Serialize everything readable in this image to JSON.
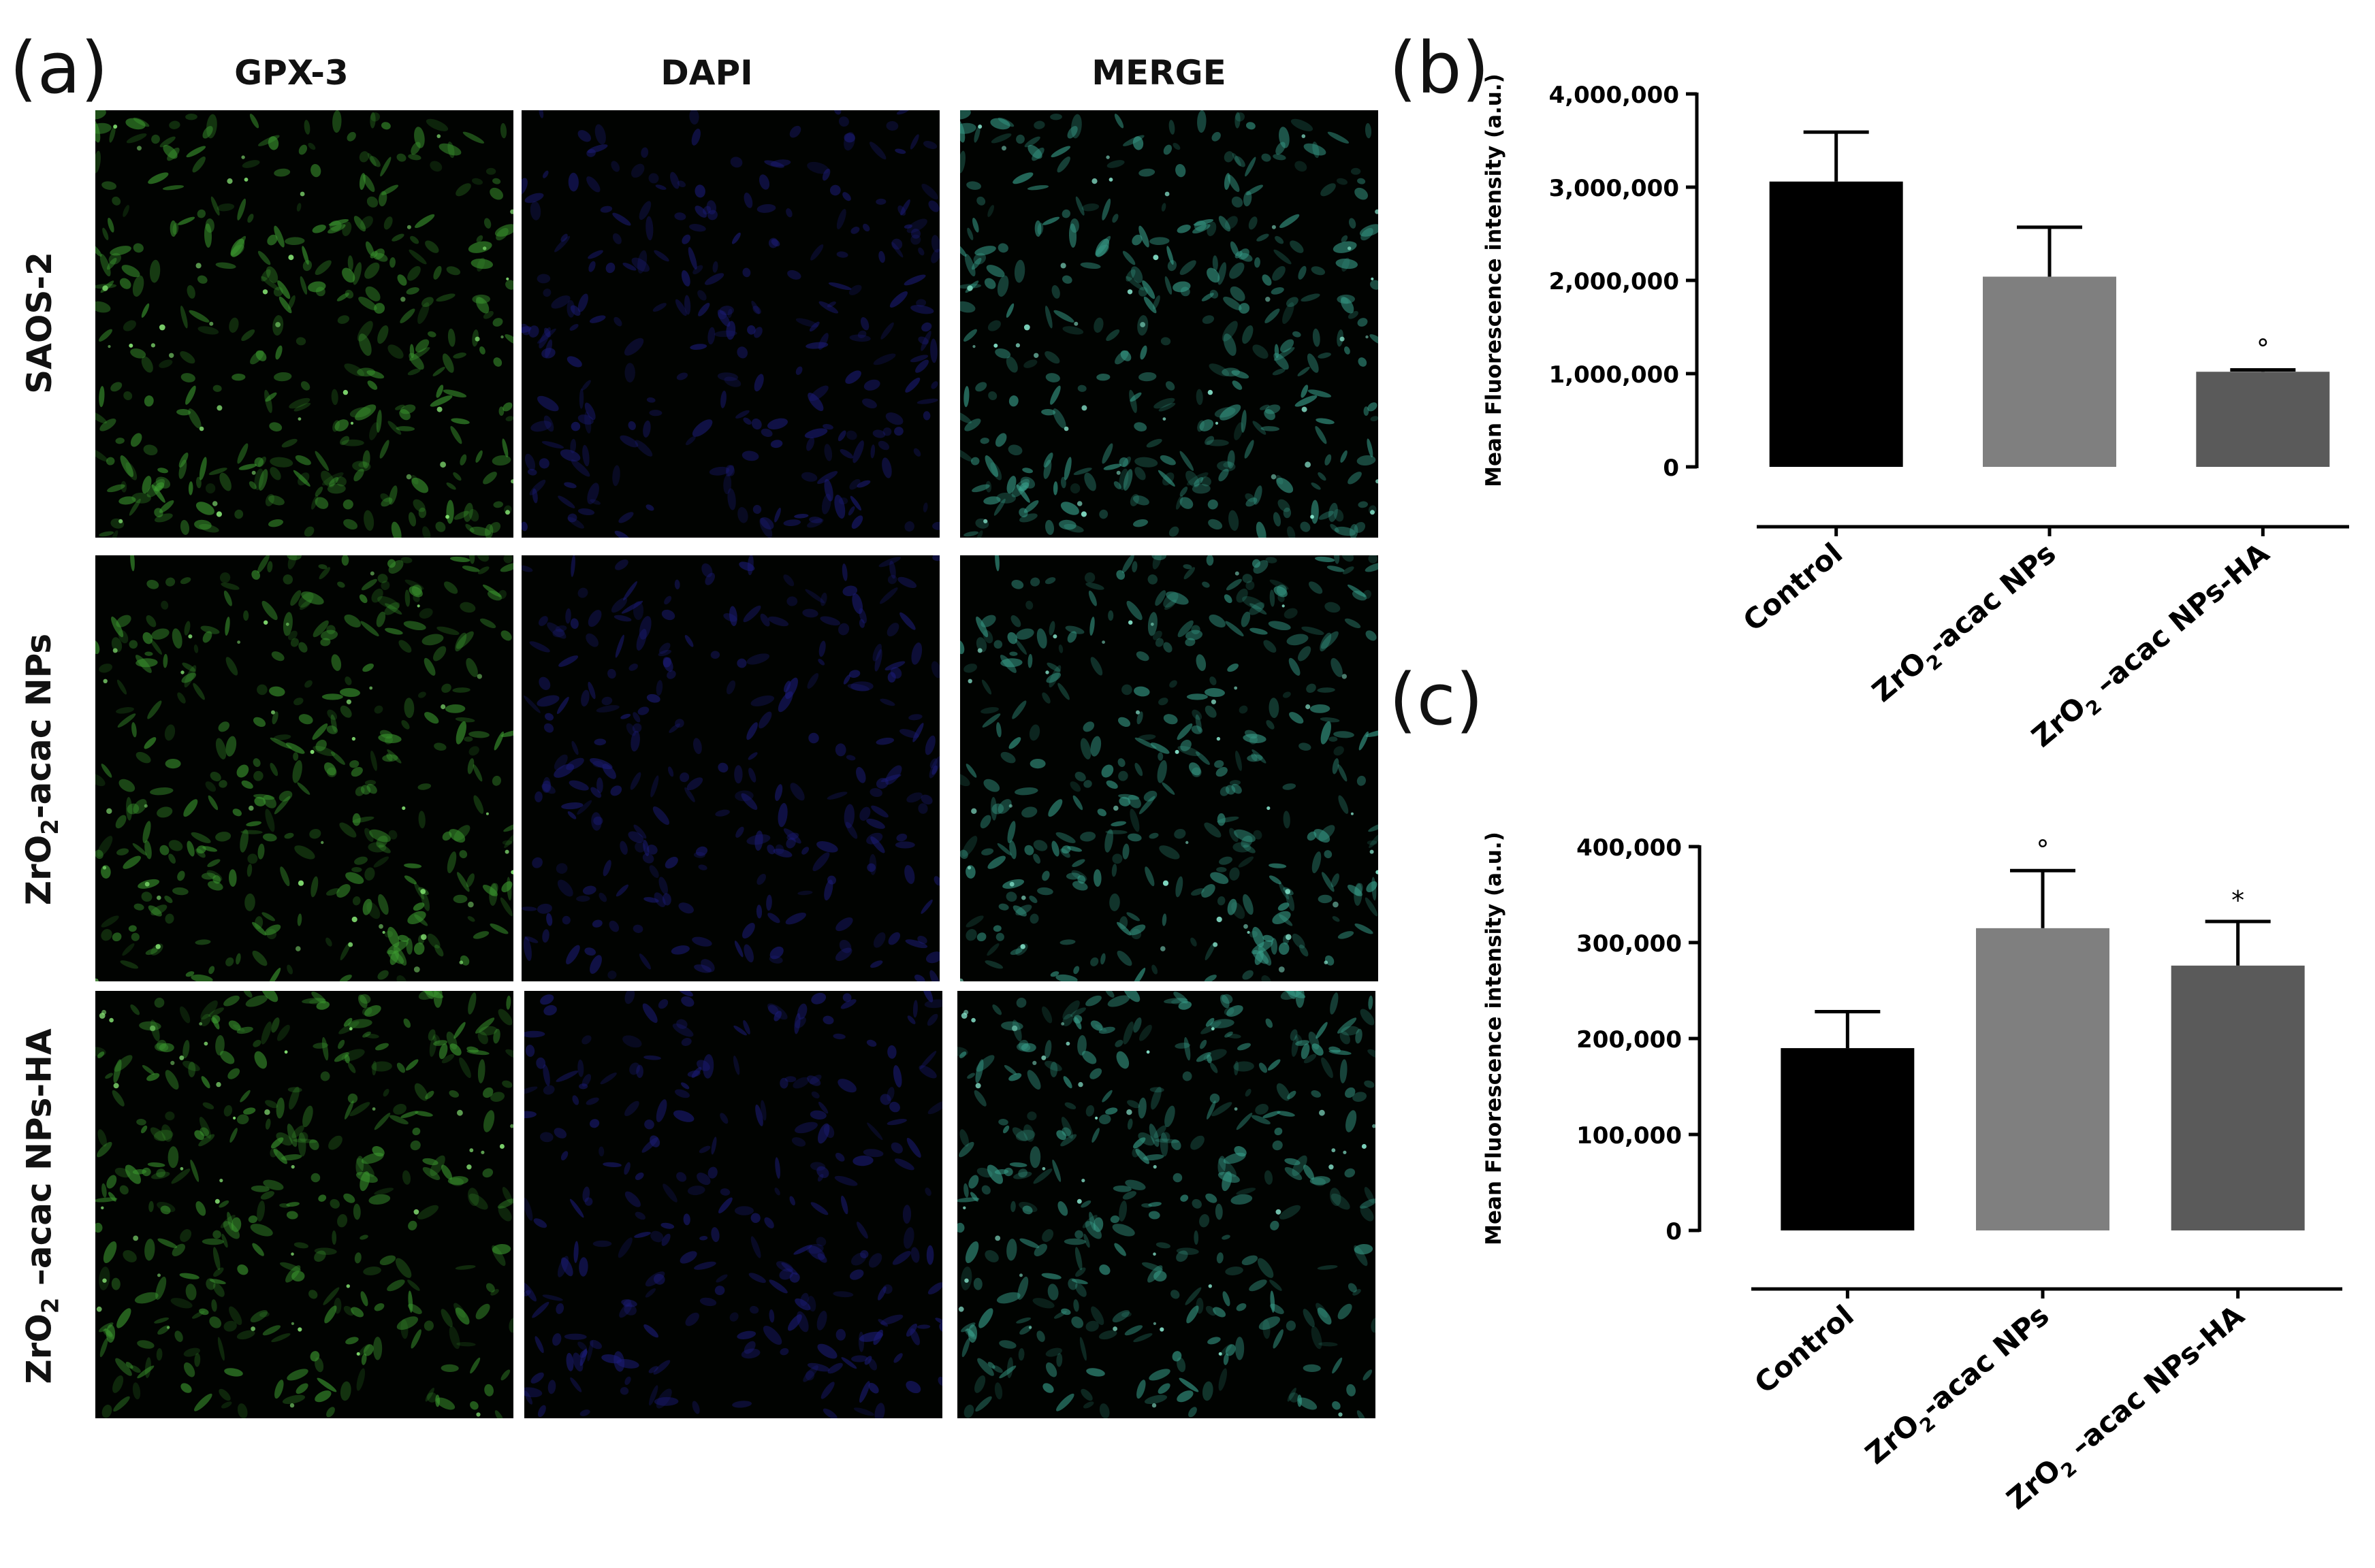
{
  "panel_a": {
    "letter": "(a)",
    "columns": [
      "GPX-3",
      "DAPI",
      "MERGE"
    ],
    "rows": [
      {
        "pre": "SAOS-2",
        "sub": "",
        "post": ""
      },
      {
        "pre": "ZrO",
        "sub": "2",
        "post": "-acac NPs"
      },
      {
        "pre": "ZrO",
        "sub": "2",
        "post": " –acac NPs-HA"
      }
    ]
  },
  "colors": {
    "gpx": "#3c9a30",
    "dapi": "#1c1c7a",
    "merge": "#38a08c",
    "bar_control": "#000000",
    "bar_np": "#7f7f7f",
    "bar_npha": "#5a5a5a"
  },
  "chart_data": [
    {
      "id": "b",
      "letter": "(b)",
      "type": "bar",
      "title": "",
      "xlabel": "",
      "ylabel": "Mean Fluorescence intensity (a.u.)",
      "ylim": [
        0,
        4000000
      ],
      "yticks": [
        0,
        1000000,
        2000000,
        3000000,
        4000000
      ],
      "ytick_labels": [
        "0",
        "1,000,000",
        "2,000,000",
        "3,000,000",
        "4,000,000"
      ],
      "categories": [
        {
          "pre": "Control",
          "sub": "",
          "post": ""
        },
        {
          "pre": "ZrO",
          "sub": "2",
          "post": "-acac NPs"
        },
        {
          "pre": "ZrO",
          "sub": "2",
          "post": " –acac NPs-HA"
        }
      ],
      "values": [
        3060000,
        2040000,
        1020000
      ],
      "errors": [
        530000,
        530000,
        20000
      ],
      "markers": [
        "",
        "",
        "°"
      ],
      "grid": false
    },
    {
      "id": "c",
      "letter": "(c)",
      "type": "bar",
      "title": "",
      "xlabel": "",
      "ylabel": "Mean Fluorescence intensity (a.u.)",
      "ylim": [
        0,
        400000
      ],
      "yticks": [
        0,
        100000,
        200000,
        300000,
        400000
      ],
      "ytick_labels": [
        "0",
        "100,000",
        "200,000",
        "300,000",
        "400,000"
      ],
      "categories": [
        {
          "pre": "Control",
          "sub": "",
          "post": ""
        },
        {
          "pre": "ZrO",
          "sub": "2",
          "post": "-acac NPs"
        },
        {
          "pre": "ZrO",
          "sub": "2",
          "post": " –acac NPs-HA"
        }
      ],
      "values": [
        190000,
        315000,
        276000
      ],
      "errors": [
        38000,
        60000,
        46000
      ],
      "markers": [
        "",
        "°",
        "*"
      ],
      "grid": false
    }
  ]
}
